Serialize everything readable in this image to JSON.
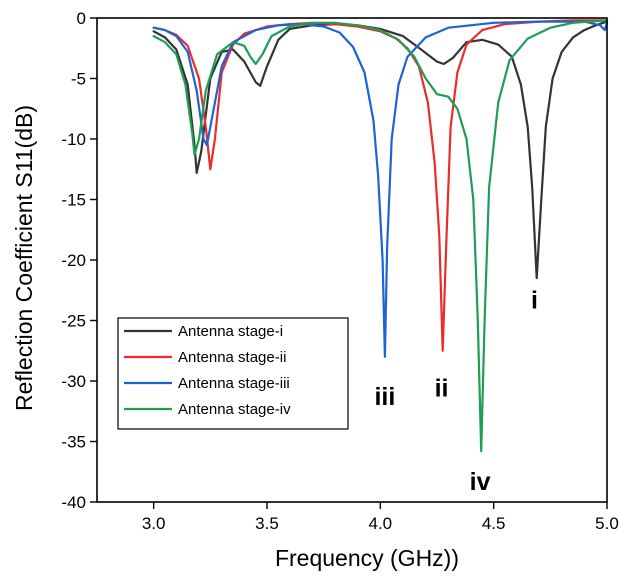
{
  "chart_data": {
    "type": "line",
    "title": "",
    "xlabel": "Frequency (GHz))",
    "ylabel": "Reflection Coefficient S11(dB)",
    "xlim": [
      2.75,
      5.0
    ],
    "ylim": [
      -40,
      0
    ],
    "xticks": [
      3.0,
      3.5,
      4.0,
      4.5,
      5.0
    ],
    "xtick_labels": [
      "3.0",
      "3.5",
      "4.0",
      "4.5",
      "5.0"
    ],
    "yticks": [
      0,
      -5,
      -10,
      -15,
      -20,
      -25,
      -30,
      -35,
      -40
    ],
    "ytick_labels": [
      "0",
      "-5",
      "-10",
      "-15",
      "-20",
      "-25",
      "-30",
      "-35",
      "-40"
    ],
    "grid": false,
    "legend_position": "bottom-left",
    "series": [
      {
        "name": "Antenna stage-i",
        "color": "#333333",
        "points": [
          [
            3.0,
            -1.1
          ],
          [
            3.05,
            -1.6
          ],
          [
            3.1,
            -2.6
          ],
          [
            3.15,
            -5.5
          ],
          [
            3.18,
            -10.5
          ],
          [
            3.19,
            -12.8
          ],
          [
            3.21,
            -11.0
          ],
          [
            3.25,
            -5.0
          ],
          [
            3.3,
            -2.8
          ],
          [
            3.35,
            -2.6
          ],
          [
            3.4,
            -3.6
          ],
          [
            3.45,
            -5.3
          ],
          [
            3.47,
            -5.6
          ],
          [
            3.5,
            -4.0
          ],
          [
            3.55,
            -1.8
          ],
          [
            3.6,
            -0.9
          ],
          [
            3.7,
            -0.6
          ],
          [
            3.8,
            -0.5
          ],
          [
            3.9,
            -0.6
          ],
          [
            4.0,
            -0.9
          ],
          [
            4.1,
            -1.5
          ],
          [
            4.18,
            -2.6
          ],
          [
            4.25,
            -3.6
          ],
          [
            4.28,
            -3.8
          ],
          [
            4.32,
            -3.3
          ],
          [
            4.38,
            -2.0
          ],
          [
            4.45,
            -1.8
          ],
          [
            4.52,
            -2.2
          ],
          [
            4.58,
            -3.2
          ],
          [
            4.62,
            -5.5
          ],
          [
            4.65,
            -9.0
          ],
          [
            4.67,
            -14.0
          ],
          [
            4.69,
            -21.5
          ],
          [
            4.71,
            -15.0
          ],
          [
            4.73,
            -9.0
          ],
          [
            4.76,
            -5.0
          ],
          [
            4.8,
            -2.8
          ],
          [
            4.85,
            -1.6
          ],
          [
            4.9,
            -1.0
          ],
          [
            4.95,
            -0.6
          ],
          [
            5.0,
            -0.3
          ]
        ]
      },
      {
        "name": "Antenna stage-ii",
        "color": "#ee2b2b",
        "points": [
          [
            3.0,
            -0.8
          ],
          [
            3.05,
            -1.0
          ],
          [
            3.1,
            -1.4
          ],
          [
            3.15,
            -2.3
          ],
          [
            3.2,
            -5.0
          ],
          [
            3.23,
            -9.0
          ],
          [
            3.25,
            -12.5
          ],
          [
            3.27,
            -10.0
          ],
          [
            3.3,
            -4.5
          ],
          [
            3.35,
            -2.2
          ],
          [
            3.4,
            -1.3
          ],
          [
            3.5,
            -0.7
          ],
          [
            3.6,
            -0.5
          ],
          [
            3.7,
            -0.4
          ],
          [
            3.8,
            -0.5
          ],
          [
            3.9,
            -0.7
          ],
          [
            4.0,
            -1.1
          ],
          [
            4.07,
            -1.7
          ],
          [
            4.12,
            -2.5
          ],
          [
            4.17,
            -4.0
          ],
          [
            4.21,
            -7.0
          ],
          [
            4.24,
            -12.0
          ],
          [
            4.26,
            -18.0
          ],
          [
            4.275,
            -27.5
          ],
          [
            4.29,
            -19.0
          ],
          [
            4.31,
            -9.0
          ],
          [
            4.34,
            -4.5
          ],
          [
            4.38,
            -2.2
          ],
          [
            4.45,
            -1.0
          ],
          [
            4.55,
            -0.5
          ],
          [
            4.7,
            -0.3
          ],
          [
            4.85,
            -0.2
          ],
          [
            5.0,
            -0.2
          ]
        ]
      },
      {
        "name": "Antenna stage-iii",
        "color": "#1e63d4",
        "points": [
          [
            3.0,
            -0.8
          ],
          [
            3.05,
            -1.0
          ],
          [
            3.1,
            -1.5
          ],
          [
            3.15,
            -2.8
          ],
          [
            3.19,
            -6.0
          ],
          [
            3.22,
            -10.0
          ],
          [
            3.235,
            -10.5
          ],
          [
            3.26,
            -8.0
          ],
          [
            3.3,
            -4.0
          ],
          [
            3.35,
            -2.0
          ],
          [
            3.45,
            -1.0
          ],
          [
            3.55,
            -0.6
          ],
          [
            3.65,
            -0.5
          ],
          [
            3.75,
            -0.7
          ],
          [
            3.82,
            -1.2
          ],
          [
            3.88,
            -2.4
          ],
          [
            3.93,
            -4.5
          ],
          [
            3.97,
            -8.5
          ],
          [
            3.99,
            -13.0
          ],
          [
            4.01,
            -20.0
          ],
          [
            4.02,
            -28.0
          ],
          [
            4.03,
            -19.0
          ],
          [
            4.05,
            -10.0
          ],
          [
            4.08,
            -5.5
          ],
          [
            4.12,
            -3.2
          ],
          [
            4.2,
            -1.6
          ],
          [
            4.3,
            -0.8
          ],
          [
            4.5,
            -0.4
          ],
          [
            4.7,
            -0.3
          ],
          [
            4.9,
            -0.3
          ],
          [
            4.97,
            -0.6
          ],
          [
            4.99,
            -1.0
          ],
          [
            5.0,
            -0.4
          ]
        ]
      },
      {
        "name": "Antenna stage-iv",
        "color": "#1f9d55",
        "points": [
          [
            3.0,
            -1.5
          ],
          [
            3.05,
            -2.0
          ],
          [
            3.1,
            -3.0
          ],
          [
            3.14,
            -5.5
          ],
          [
            3.17,
            -9.5
          ],
          [
            3.18,
            -11.3
          ],
          [
            3.2,
            -10.0
          ],
          [
            3.23,
            -6.0
          ],
          [
            3.28,
            -3.0
          ],
          [
            3.35,
            -2.0
          ],
          [
            3.4,
            -2.3
          ],
          [
            3.43,
            -3.3
          ],
          [
            3.45,
            -3.8
          ],
          [
            3.48,
            -3.0
          ],
          [
            3.52,
            -1.5
          ],
          [
            3.6,
            -0.7
          ],
          [
            3.7,
            -0.4
          ],
          [
            3.8,
            -0.4
          ],
          [
            3.9,
            -0.6
          ],
          [
            4.0,
            -1.0
          ],
          [
            4.08,
            -1.8
          ],
          [
            4.15,
            -3.2
          ],
          [
            4.2,
            -5.0
          ],
          [
            4.25,
            -6.3
          ],
          [
            4.3,
            -6.5
          ],
          [
            4.34,
            -7.5
          ],
          [
            4.38,
            -10.0
          ],
          [
            4.41,
            -15.0
          ],
          [
            4.43,
            -25.0
          ],
          [
            4.445,
            -35.8
          ],
          [
            4.46,
            -25.0
          ],
          [
            4.48,
            -14.0
          ],
          [
            4.52,
            -7.0
          ],
          [
            4.57,
            -3.5
          ],
          [
            4.65,
            -1.7
          ],
          [
            4.75,
            -0.8
          ],
          [
            4.85,
            -0.4
          ],
          [
            5.0,
            -0.2
          ]
        ]
      }
    ],
    "annotations": [
      {
        "text": "i",
        "x": 4.68,
        "y": -24.0
      },
      {
        "text": "ii",
        "x": 4.27,
        "y": -31.3
      },
      {
        "text": "iii",
        "x": 4.02,
        "y": -32.0
      },
      {
        "text": "iv",
        "x": 4.44,
        "y": -39.0
      }
    ]
  }
}
